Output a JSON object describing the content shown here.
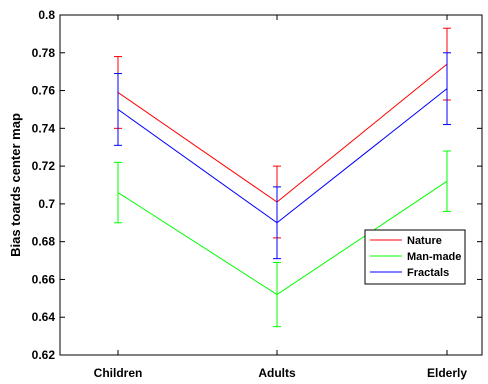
{
  "chart_data": {
    "type": "line",
    "title": "",
    "xlabel": "",
    "ylabel": "Bias toards center map",
    "categories": [
      "Children",
      "Adults",
      "Elderly"
    ],
    "ylim": [
      0.62,
      0.8
    ],
    "yticks": [
      "0.62",
      "0.64",
      "0.66",
      "0.68",
      "0.7",
      "0.72",
      "0.74",
      "0.76",
      "0.78",
      "0.8"
    ],
    "grid": false,
    "legend_position": "center-right",
    "series": [
      {
        "name": "Nature",
        "color": "#ff0000",
        "values": [
          0.759,
          0.701,
          0.774
        ],
        "errors": [
          0.019,
          0.019,
          0.019
        ]
      },
      {
        "name": "Man-made",
        "color": "#00ff00",
        "values": [
          0.706,
          0.652,
          0.712
        ],
        "errors": [
          0.016,
          0.017,
          0.016
        ]
      },
      {
        "name": "Fractals",
        "color": "#0000ff",
        "values": [
          0.75,
          0.69,
          0.761
        ],
        "errors": [
          0.019,
          0.019,
          0.019
        ]
      }
    ]
  }
}
